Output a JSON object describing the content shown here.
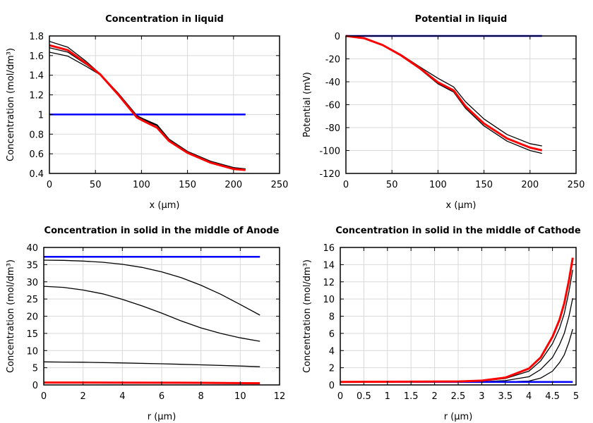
{
  "chart_data": [
    {
      "type": "line",
      "title": "Concentration in liquid",
      "xlabel": "x (µm)",
      "ylabel": "Concentration (mol/dm³)",
      "xlim": [
        0,
        250
      ],
      "ylim": [
        0.4,
        1.8
      ],
      "xticks": [
        0,
        50,
        100,
        150,
        200,
        250
      ],
      "yticks": [
        0.4,
        0.6,
        0.8,
        1,
        1.2,
        1.4,
        1.6,
        1.8
      ],
      "grid": true,
      "series": [
        {
          "color": "#0000ff",
          "points": [
            [
              0,
              1
            ],
            [
              213,
              1
            ]
          ]
        },
        {
          "color": "#000000",
          "points": [
            [
              0,
              1.745
            ],
            [
              20,
              1.685
            ],
            [
              40,
              1.54
            ],
            [
              55,
              1.415
            ],
            [
              75,
              1.215
            ],
            [
              95,
              0.99
            ],
            [
              100,
              0.965
            ],
            [
              117,
              0.895
            ],
            [
              130,
              0.75
            ],
            [
              150,
              0.625
            ],
            [
              175,
              0.525
            ],
            [
              200,
              0.46
            ],
            [
              213,
              0.447
            ]
          ]
        },
        {
          "color": "#000000",
          "points": [
            [
              0,
              1.68
            ],
            [
              20,
              1.635
            ],
            [
              40,
              1.51
            ],
            [
              55,
              1.41
            ],
            [
              75,
              1.21
            ],
            [
              95,
              0.985
            ],
            [
              100,
              0.96
            ],
            [
              117,
              0.89
            ],
            [
              130,
              0.745
            ],
            [
              150,
              0.622
            ],
            [
              175,
              0.522
            ],
            [
              200,
              0.457
            ],
            [
              213,
              0.445
            ]
          ]
        },
        {
          "color": "#000000",
          "points": [
            [
              0,
              1.635
            ],
            [
              20,
              1.595
            ],
            [
              40,
              1.49
            ],
            [
              55,
              1.405
            ],
            [
              75,
              1.205
            ],
            [
              95,
              0.98
            ],
            [
              100,
              0.955
            ],
            [
              117,
              0.885
            ],
            [
              130,
              0.742
            ],
            [
              150,
              0.62
            ],
            [
              175,
              0.52
            ],
            [
              200,
              0.455
            ],
            [
              213,
              0.443
            ]
          ]
        },
        {
          "color": "#ff0000",
          "points": [
            [
              0,
              1.705
            ],
            [
              20,
              1.655
            ],
            [
              40,
              1.52
            ],
            [
              55,
              1.41
            ],
            [
              75,
              1.2
            ],
            [
              95,
              0.97
            ],
            [
              100,
              0.945
            ],
            [
              117,
              0.865
            ],
            [
              130,
              0.73
            ],
            [
              150,
              0.61
            ],
            [
              175,
              0.51
            ],
            [
              200,
              0.445
            ],
            [
              213,
              0.435
            ]
          ]
        }
      ]
    },
    {
      "type": "line",
      "title": "Potential in liquid",
      "xlabel": "x (µm)",
      "ylabel": "Potential (mV)",
      "xlim": [
        0,
        250
      ],
      "ylim": [
        -120,
        0
      ],
      "xticks": [
        0,
        50,
        100,
        150,
        200,
        250
      ],
      "yticks": [
        -120,
        -100,
        -80,
        -60,
        -40,
        -20,
        0
      ],
      "grid": true,
      "series": [
        {
          "color": "#0000ff",
          "points": [
            [
              0,
              0
            ],
            [
              213,
              0
            ]
          ]
        },
        {
          "color": "#000000",
          "points": [
            [
              0,
              0
            ],
            [
              20,
              -1.9
            ],
            [
              40,
              -7.7
            ],
            [
              60,
              -16.3
            ],
            [
              80,
              -26.9
            ],
            [
              100,
              -37
            ],
            [
              117,
              -44.5
            ],
            [
              130,
              -57.5
            ],
            [
              150,
              -72.5
            ],
            [
              175,
              -86
            ],
            [
              200,
              -94
            ],
            [
              213,
              -96
            ]
          ]
        },
        {
          "color": "#000000",
          "points": [
            [
              0,
              0
            ],
            [
              20,
              -2
            ],
            [
              40,
              -8.2
            ],
            [
              60,
              -17.4
            ],
            [
              80,
              -28.6
            ],
            [
              100,
              -41.8
            ],
            [
              117,
              -49
            ],
            [
              130,
              -63.2
            ],
            [
              150,
              -78.5
            ],
            [
              175,
              -91.8
            ],
            [
              200,
              -100
            ],
            [
              213,
              -102.5
            ]
          ]
        },
        {
          "color": "#ff0000",
          "points": [
            [
              0,
              0
            ],
            [
              20,
              -2
            ],
            [
              40,
              -8
            ],
            [
              60,
              -17
            ],
            [
              80,
              -28
            ],
            [
              100,
              -40.5
            ],
            [
              117,
              -47.5
            ],
            [
              130,
              -61.5
            ],
            [
              150,
              -76.5
            ],
            [
              175,
              -89.5
            ],
            [
              200,
              -97.5
            ],
            [
              213,
              -99.8
            ]
          ]
        }
      ]
    },
    {
      "type": "line",
      "title": "Concentration in solid in the middle of Anode",
      "xlabel": "r (µm)",
      "ylabel": "Concentration (mol/dm³)",
      "xlim": [
        0,
        12
      ],
      "ylim": [
        0,
        40
      ],
      "xticks": [
        0,
        2,
        4,
        6,
        8,
        10,
        12
      ],
      "yticks": [
        0,
        5,
        10,
        15,
        20,
        25,
        30,
        35,
        40
      ],
      "grid": true,
      "series": [
        {
          "color": "#0000ff",
          "points": [
            [
              0,
              37.3
            ],
            [
              11,
              37.3
            ]
          ]
        },
        {
          "color": "#000000",
          "points": [
            [
              0,
              36.3
            ],
            [
              1,
              36.25
            ],
            [
              2,
              36.05
            ],
            [
              3,
              35.7
            ],
            [
              4,
              35.1
            ],
            [
              5,
              34.2
            ],
            [
              6,
              32.9
            ],
            [
              7,
              31.2
            ],
            [
              8,
              29
            ],
            [
              9,
              26.4
            ],
            [
              10,
              23.4
            ],
            [
              11,
              20.3
            ]
          ]
        },
        {
          "color": "#000000",
          "points": [
            [
              0,
              28.7
            ],
            [
              1,
              28.4
            ],
            [
              2,
              27.6
            ],
            [
              3,
              26.5
            ],
            [
              4,
              24.9
            ],
            [
              5,
              23
            ],
            [
              6,
              20.9
            ],
            [
              7,
              18.6
            ],
            [
              8,
              16.6
            ],
            [
              9,
              15
            ],
            [
              10,
              13.7
            ],
            [
              11,
              12.7
            ]
          ]
        },
        {
          "color": "#000000",
          "points": [
            [
              0,
              6.7
            ],
            [
              1,
              6.65
            ],
            [
              2,
              6.6
            ],
            [
              4,
              6.4
            ],
            [
              6,
              6.15
            ],
            [
              8,
              5.85
            ],
            [
              10,
              5.5
            ],
            [
              11,
              5.3
            ]
          ]
        },
        {
          "color": "#ff0000",
          "points": [
            [
              0,
              0.7
            ],
            [
              4,
              0.68
            ],
            [
              8,
              0.62
            ],
            [
              11,
              0.5
            ]
          ]
        }
      ]
    },
    {
      "type": "line",
      "title": "Concentration in solid in the middle of Cathode",
      "xlabel": "r (µm)",
      "ylabel": "Concentration (mol/dm³)",
      "xlim": [
        0,
        5
      ],
      "ylim": [
        0,
        16
      ],
      "xticks": [
        0,
        0.5,
        1,
        1.5,
        2,
        2.5,
        3,
        3.5,
        4,
        4.5,
        5
      ],
      "yticks": [
        0,
        2,
        4,
        6,
        8,
        10,
        12,
        14,
        16
      ],
      "grid": true,
      "series": [
        {
          "color": "#0000ff",
          "points": [
            [
              0,
              0.35
            ],
            [
              4.93,
              0.35
            ]
          ]
        },
        {
          "color": "#000000",
          "points": [
            [
              0,
              0.35
            ],
            [
              3,
              0.35
            ],
            [
              3.5,
              0.36
            ],
            [
              4,
              0.45
            ],
            [
              4.25,
              0.8
            ],
            [
              4.5,
              1.6
            ],
            [
              4.65,
              2.6
            ],
            [
              4.75,
              3.5
            ],
            [
              4.85,
              5
            ],
            [
              4.93,
              6.5
            ]
          ]
        },
        {
          "color": "#000000",
          "points": [
            [
              0,
              0.35
            ],
            [
              3,
              0.38
            ],
            [
              3.5,
              0.5
            ],
            [
              4,
              0.95
            ],
            [
              4.25,
              1.8
            ],
            [
              4.5,
              3.2
            ],
            [
              4.65,
              4.7
            ],
            [
              4.75,
              6
            ],
            [
              4.85,
              8
            ],
            [
              4.93,
              10.1
            ]
          ]
        },
        {
          "color": "#000000",
          "points": [
            [
              0,
              0.35
            ],
            [
              2.5,
              0.38
            ],
            [
              3,
              0.45
            ],
            [
              3.5,
              0.75
            ],
            [
              4,
              1.6
            ],
            [
              4.25,
              2.8
            ],
            [
              4.5,
              4.8
            ],
            [
              4.65,
              6.6
            ],
            [
              4.75,
              8.3
            ],
            [
              4.85,
              10.9
            ],
            [
              4.93,
              13.4
            ]
          ]
        },
        {
          "color": "#ff0000",
          "points": [
            [
              0,
              0.35
            ],
            [
              2.5,
              0.4
            ],
            [
              3,
              0.5
            ],
            [
              3.5,
              0.85
            ],
            [
              4,
              1.9
            ],
            [
              4.25,
              3.2
            ],
            [
              4.5,
              5.6
            ],
            [
              4.65,
              7.6
            ],
            [
              4.75,
              9.5
            ],
            [
              4.85,
              12.2
            ],
            [
              4.93,
              14.8
            ]
          ]
        }
      ]
    }
  ]
}
